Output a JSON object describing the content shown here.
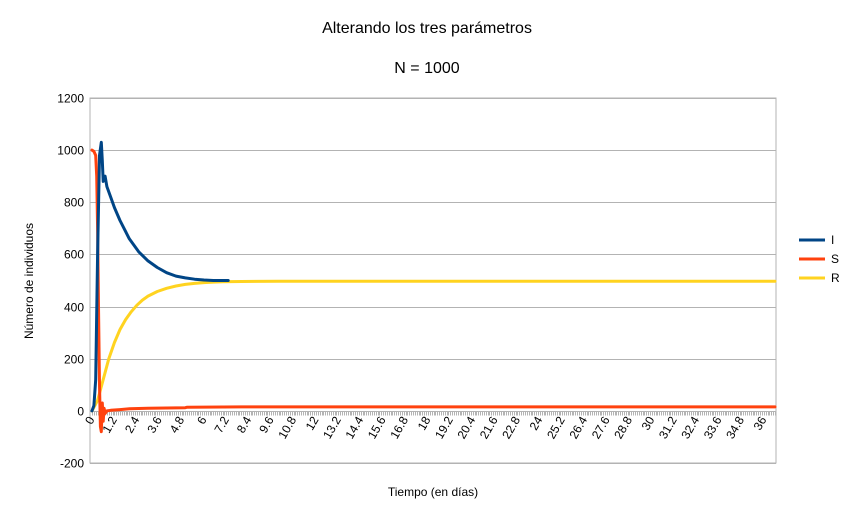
{
  "chart_data": {
    "type": "line",
    "title": "Alterando los tres parámetros",
    "subtitle": "N = 1000",
    "xlabel": "Tiempo (en días)",
    "ylabel": "Número de individuos",
    "ylim": [
      -200,
      1200
    ],
    "yticks": [
      -200,
      0,
      200,
      400,
      600,
      800,
      1000,
      1200
    ],
    "xlim": [
      0,
      36.6
    ],
    "xtick_step": 0.1,
    "xtick_labels": [
      "0",
      "1.2",
      "2.4",
      "3.6",
      "4.8",
      "6",
      "7.2",
      "8.4",
      "9.6",
      "10.8",
      "12",
      "13.2",
      "14.4",
      "15.6",
      "16.8",
      "18",
      "19.2",
      "20.4",
      "21.6",
      "22.8",
      "24",
      "25.2",
      "26.4",
      "27.6",
      "28.8",
      "30",
      "31.2",
      "32.4",
      "33.6",
      "34.8",
      "36"
    ],
    "grid": true,
    "legend_position": "right",
    "series": [
      {
        "name": "I",
        "color": "#004586",
        "x": [
          0,
          0.1,
          0.2,
          0.3,
          0.4,
          0.5,
          0.55,
          0.6,
          0.7,
          0.8,
          1.0,
          1.2,
          1.5,
          2.0,
          2.5,
          3.0,
          3.5,
          4.0,
          4.5,
          5.0,
          5.5,
          6.0,
          6.5,
          7.0,
          7.3
        ],
        "y": [
          0,
          20,
          120,
          600,
          980,
          1030,
          960,
          880,
          900,
          860,
          820,
          780,
          730,
          660,
          610,
          575,
          550,
          530,
          517,
          510,
          505,
          502,
          500,
          500,
          500
        ]
      },
      {
        "name": "S",
        "color": "#ff420e",
        "x": [
          0,
          0.1,
          0.2,
          0.25,
          0.3,
          0.35,
          0.4,
          0.45,
          0.5,
          0.55,
          0.6,
          0.65,
          0.7,
          0.8,
          1.0,
          1.5,
          2.0,
          3.0,
          4.0,
          5.0,
          5.1,
          8.0,
          12.0,
          20.0,
          30.0,
          36.6
        ],
        "y": [
          1000,
          995,
          980,
          900,
          700,
          400,
          100,
          -60,
          -80,
          30,
          -40,
          10,
          -10,
          0,
          2,
          5,
          8,
          10,
          11,
          12,
          14,
          15,
          15,
          15,
          15,
          15
        ]
      },
      {
        "name": "R",
        "color": "#ffd320",
        "x": [
          0,
          0.3,
          0.6,
          0.9,
          1.2,
          1.5,
          1.8,
          2.1,
          2.4,
          2.7,
          3.0,
          3.5,
          4.0,
          4.5,
          5.0,
          5.5,
          6.0,
          6.5,
          7.0,
          8.0,
          10.0,
          15.0,
          20.0,
          30.0,
          36.6
        ],
        "y": [
          0,
          40,
          120,
          200,
          262,
          312,
          350,
          380,
          405,
          425,
          440,
          458,
          470,
          479,
          485,
          489,
          492,
          494,
          495,
          496,
          497,
          497,
          497,
          497,
          497
        ]
      }
    ]
  }
}
